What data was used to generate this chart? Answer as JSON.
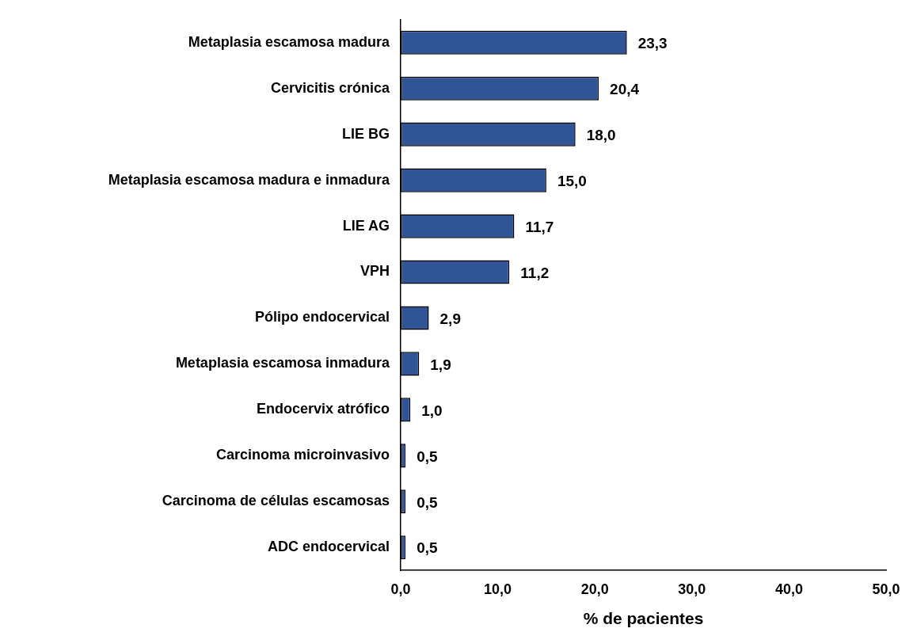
{
  "chart_data": {
    "type": "bar",
    "orientation": "horizontal",
    "xlabel": "% de pacientes",
    "categories": [
      "Metaplasia escamosa madura",
      "Cervicitis crónica",
      "LIE BG",
      "Metaplasia escamosa madura e inmadura",
      "LIE AG",
      "VPH",
      "Pólipo endocervical",
      "Metaplasia escamosa inmadura",
      "Endocervix atrófico",
      "Carcinoma microinvasivo",
      "Carcinoma de células escamosas",
      "ADC endocervical"
    ],
    "values": [
      23.3,
      20.4,
      18.0,
      15.0,
      11.7,
      11.2,
      2.9,
      1.9,
      1.0,
      0.5,
      0.5,
      0.5
    ],
    "value_labels": [
      "23,3",
      "20,4",
      "18,0",
      "15,0",
      "11,7",
      "11,2",
      "2,9",
      "1,9",
      "1,0",
      "0,5",
      "0,5",
      "0,5"
    ],
    "color": "#2f5597",
    "xlim": [
      0,
      50
    ],
    "xticks": [
      {
        "value": 0,
        "label": "0,0"
      },
      {
        "value": 10,
        "label": "10,0"
      },
      {
        "value": 20,
        "label": "20,0"
      },
      {
        "value": 30,
        "label": "30,0"
      },
      {
        "value": 40,
        "label": "40,0"
      },
      {
        "value": 50,
        "label": "50,0"
      }
    ],
    "grid": false,
    "legend": false
  }
}
